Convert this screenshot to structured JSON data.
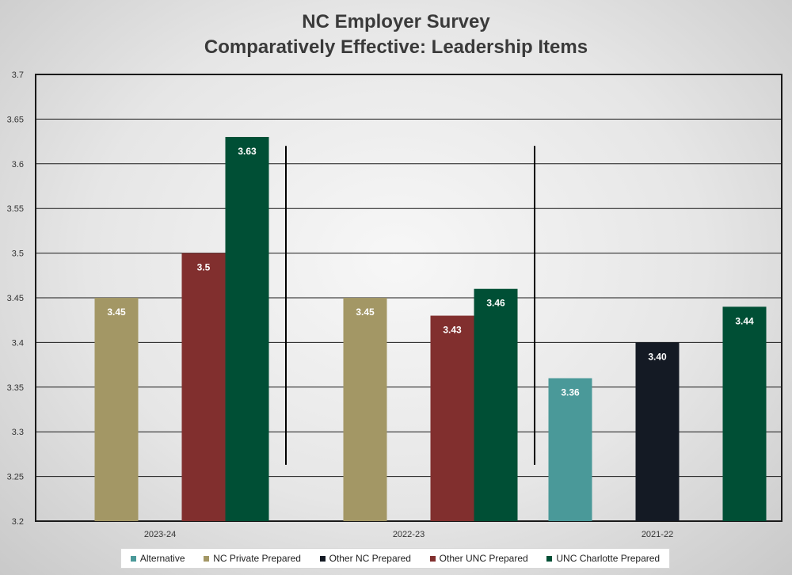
{
  "chart_data": {
    "type": "bar",
    "title": "NC Employer Survey",
    "subtitle": "Comparatively Effective: Leadership Items",
    "categories": [
      "2023-24",
      "2022-23",
      "2021-22"
    ],
    "ylim": [
      3.2,
      3.7
    ],
    "yticks": [
      "3.2",
      "3.25",
      "3.3",
      "3.35",
      "3.4",
      "3.45",
      "3.5",
      "3.55",
      "3.6",
      "3.65",
      "3.7"
    ],
    "grid": true,
    "legend_position": "bottom",
    "series": [
      {
        "name": "Alternative",
        "color": "#4a9999",
        "values": [
          null,
          null,
          3.36
        ],
        "labels": [
          "",
          "",
          "3.36"
        ]
      },
      {
        "name": "NC Private Prepared",
        "color": "#a39765",
        "values": [
          3.45,
          3.45,
          null
        ],
        "labels": [
          "3.45",
          "3.45",
          ""
        ]
      },
      {
        "name": "Other NC Prepared",
        "color": "#141a24",
        "values": [
          null,
          null,
          3.4
        ],
        "labels": [
          "",
          "",
          "3.40"
        ]
      },
      {
        "name": "Other UNC Prepared",
        "color": "#812f2e",
        "values": [
          3.5,
          3.43,
          null
        ],
        "labels": [
          "3.5",
          "3.43",
          ""
        ]
      },
      {
        "name": "UNC Charlotte Prepared",
        "color": "#004f35",
        "values": [
          3.63,
          3.46,
          3.44
        ],
        "labels": [
          "3.63",
          "3.46",
          "3.44"
        ]
      }
    ]
  }
}
